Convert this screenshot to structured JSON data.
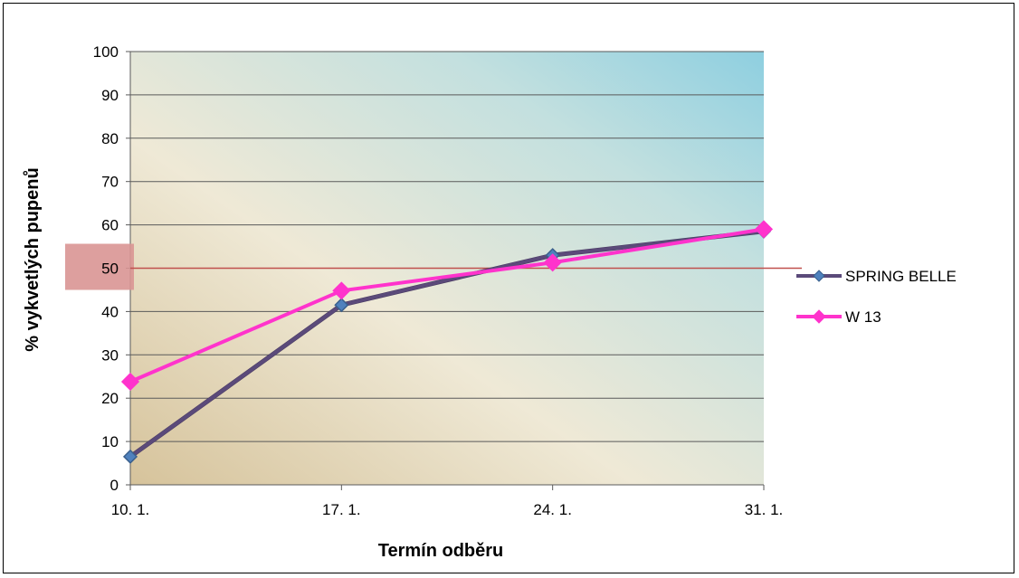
{
  "chart_data": {
    "type": "line",
    "categories": [
      "10. 1.",
      "17. 1.",
      "24. 1.",
      "31. 1."
    ],
    "series": [
      {
        "name": "SPRING BELLE",
        "values": [
          6.5,
          41.5,
          53,
          58.5
        ],
        "color": "#5b4a7a"
      },
      {
        "name": "W 13",
        "values": [
          23.8,
          44.8,
          51.3,
          59
        ],
        "color": "#ff33cc"
      }
    ],
    "xlabel": "Termín odběru",
    "ylabel": "% vykvetlých pupenů",
    "ylim": [
      0,
      100
    ],
    "yticks": [
      0,
      10,
      20,
      30,
      40,
      50,
      60,
      70,
      80,
      90,
      100
    ],
    "reference_line": {
      "value": 50,
      "color": "#c0504d",
      "highlight_color": "#d99594"
    },
    "grid": true,
    "legend_position": "right"
  }
}
